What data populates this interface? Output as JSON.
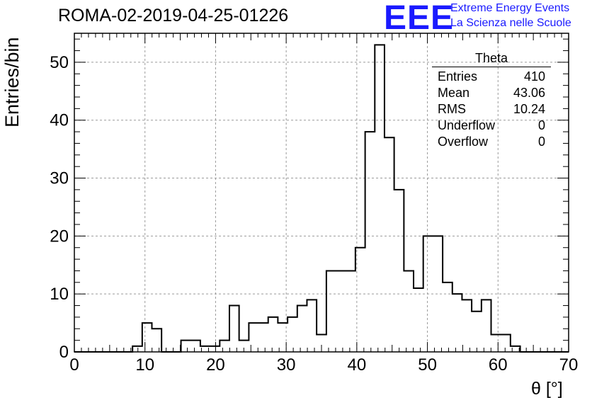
{
  "header": {
    "title": "ROMA-02-2019-04-25-01226",
    "logo_text": "EEE",
    "logo_line1": "Extreme Energy Events",
    "logo_line2": "La Scienza nelle Scuole"
  },
  "stats_box": {
    "title": "Theta",
    "rows": [
      {
        "label": "Entries",
        "value": "410"
      },
      {
        "label": "Mean",
        "value": "43.06"
      },
      {
        "label": "RMS",
        "value": "10.24"
      },
      {
        "label": "Underflow",
        "value": "0"
      },
      {
        "label": "Overflow",
        "value": "0"
      }
    ]
  },
  "chart_data": {
    "type": "bar",
    "histogram": true,
    "title": "ROMA-02-2019-04-25-01226",
    "xlabel": "θ [°]",
    "ylabel": "Entries/bin",
    "xlim": [
      0,
      70
    ],
    "ylim": [
      0,
      55
    ],
    "xticks": [
      0,
      10,
      20,
      30,
      40,
      50,
      60,
      70
    ],
    "yticks": [
      0,
      10,
      20,
      30,
      40,
      50
    ],
    "grid": true,
    "bin_edges": [
      0,
      1.37,
      2.75,
      4.12,
      5.49,
      6.86,
      8.24,
      9.61,
      10.98,
      12.35,
      13.73,
      15.1,
      16.47,
      17.84,
      19.22,
      20.59,
      21.96,
      23.33,
      24.71,
      26.08,
      27.45,
      28.82,
      30.2,
      31.57,
      32.94,
      34.31,
      35.69,
      37.06,
      38.43,
      39.8,
      41.18,
      42.55,
      43.92,
      45.29,
      46.67,
      48.04,
      49.41,
      50.78,
      52.16,
      53.53,
      54.9,
      56.27,
      57.65,
      59.02,
      60.39,
      61.76,
      63.14,
      64.51,
      65.88,
      67.25,
      68.63,
      70
    ],
    "counts": [
      0,
      0,
      0,
      0,
      0,
      0,
      1,
      5,
      4,
      0,
      0,
      2,
      2,
      1,
      1,
      2,
      8,
      2,
      5,
      5,
      6,
      5,
      6,
      8,
      9,
      3,
      14,
      14,
      14,
      18,
      38,
      53,
      37,
      28,
      14,
      11,
      20,
      20,
      12,
      10,
      9,
      7,
      9,
      3,
      3,
      1,
      0,
      0,
      0,
      0,
      0
    ]
  }
}
